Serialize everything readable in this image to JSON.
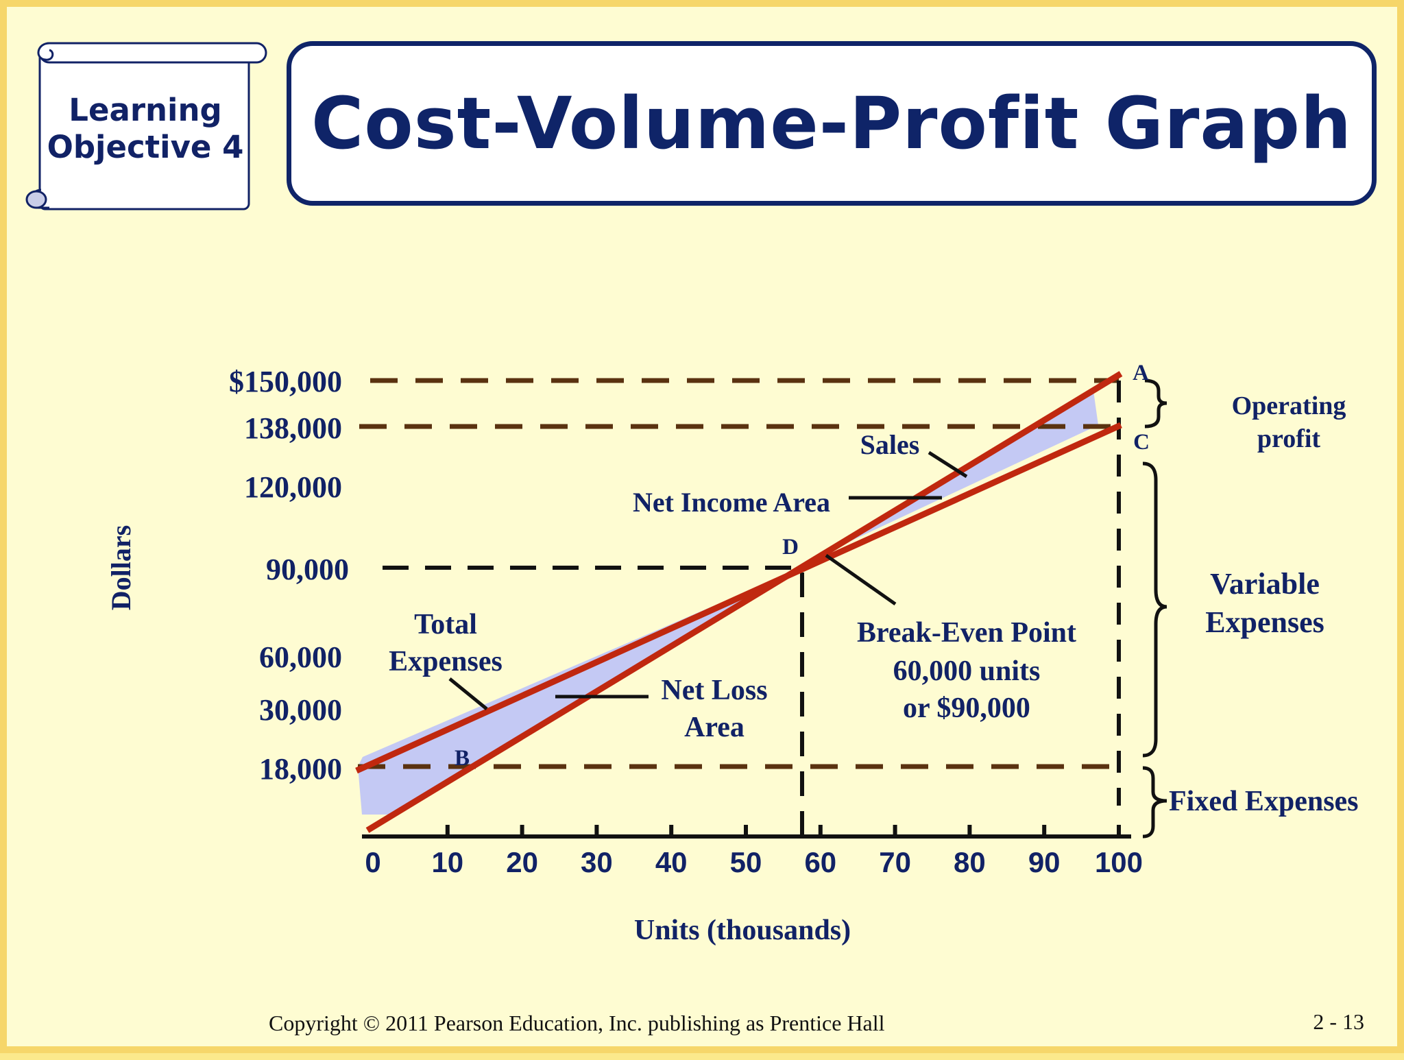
{
  "header": {
    "badge_line1": "Learning",
    "badge_line2": "Objective 4",
    "title": "Cost-Volume-Profit Graph"
  },
  "chart_data": {
    "type": "line",
    "xlabel": "Units (thousands)",
    "ylabel": "Dollars",
    "xlim": [
      0,
      100
    ],
    "x_ticks": [
      "0",
      "10",
      "20",
      "30",
      "40",
      "50",
      "60",
      "70",
      "80",
      "90",
      "100"
    ],
    "y_tick_labels": [
      "$150,000",
      "138,000",
      "120,000",
      "90,000",
      "60,000",
      "30,000",
      "18,000"
    ],
    "grid": false,
    "series": [
      {
        "name": "Sales",
        "x": [
          0,
          100
        ],
        "y": [
          0,
          150000
        ],
        "color": "#c0280f"
      },
      {
        "name": "Total Expenses",
        "x": [
          0,
          100
        ],
        "y": [
          18000,
          138000
        ],
        "color": "#c0280f"
      }
    ],
    "points": {
      "A": "A",
      "B": "B",
      "C": "C",
      "D": "D"
    },
    "annotations": {
      "sales": "Sales",
      "net_income_area": "Net Income Area",
      "net_loss_line1": "Net Loss",
      "net_loss_line2": "Area",
      "total_expenses_line1": "Total",
      "total_expenses_line2": "Expenses",
      "break_even_line1": "Break-Even Point",
      "break_even_line2": "60,000 units",
      "break_even_line3": "or $90,000",
      "operating_profit_line1": "Operating",
      "operating_profit_line2": "profit",
      "variable_expenses_line1": "Variable",
      "variable_expenses_line2": "Expenses",
      "fixed_expenses": "Fixed Expenses"
    },
    "break_even": {
      "units": 60000,
      "dollars": 90000
    },
    "colors": {
      "lines": "#c0280f",
      "shaded_area": "#c4c9f4",
      "guide_lines_brown": "#5a3210",
      "text": "#112266",
      "background": "#fefcd2"
    }
  },
  "footer": {
    "copyright": "Copyright © 2011 Pearson Education, Inc. publishing as Prentice Hall",
    "page": "2 - 13"
  }
}
